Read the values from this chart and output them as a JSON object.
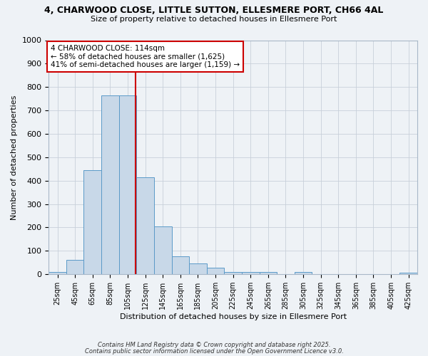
{
  "title_line1": "4, CHARWOOD CLOSE, LITTLE SUTTON, ELLESMERE PORT, CH66 4AL",
  "title_line2": "Size of property relative to detached houses in Ellesmere Port",
  "xlabel": "Distribution of detached houses by size in Ellesmere Port",
  "ylabel": "Number of detached properties",
  "bin_starts": [
    15,
    35,
    55,
    75,
    95,
    115,
    135,
    155,
    175,
    195,
    215,
    235,
    255,
    275,
    295,
    315,
    335,
    355,
    375,
    395,
    415
  ],
  "bin_width": 20,
  "bin_labels": [
    "25sqm",
    "45sqm",
    "65sqm",
    "85sqm",
    "105sqm",
    "125sqm",
    "145sqm",
    "165sqm",
    "185sqm",
    "205sqm",
    "225sqm",
    "245sqm",
    "265sqm",
    "285sqm",
    "305sqm",
    "325sqm",
    "345sqm",
    "365sqm",
    "385sqm",
    "405sqm",
    "425sqm"
  ],
  "counts": [
    10,
    62,
    445,
    765,
    765,
    415,
    205,
    78,
    45,
    27,
    10,
    10,
    10,
    0,
    10,
    0,
    0,
    0,
    0,
    0,
    8
  ],
  "bar_color": "#c8d8e8",
  "bar_edge_color": "#5b9ac8",
  "vline_x": 114,
  "vline_color": "#cc0000",
  "annotation_line1": "4 CHARWOOD CLOSE: 114sqm",
  "annotation_line2": "← 58% of detached houses are smaller (1,625)",
  "annotation_line3": "41% of semi-detached houses are larger (1,159) →",
  "annotation_box_color": "#ffffff",
  "annotation_box_edge": "#cc0000",
  "ylim": [
    0,
    1000
  ],
  "yticks": [
    0,
    100,
    200,
    300,
    400,
    500,
    600,
    700,
    800,
    900,
    1000
  ],
  "background_color": "#eef2f6",
  "grid_color": "#c8d0da",
  "footer_line1": "Contains HM Land Registry data © Crown copyright and database right 2025.",
  "footer_line2": "Contains public sector information licensed under the Open Government Licence v3.0."
}
